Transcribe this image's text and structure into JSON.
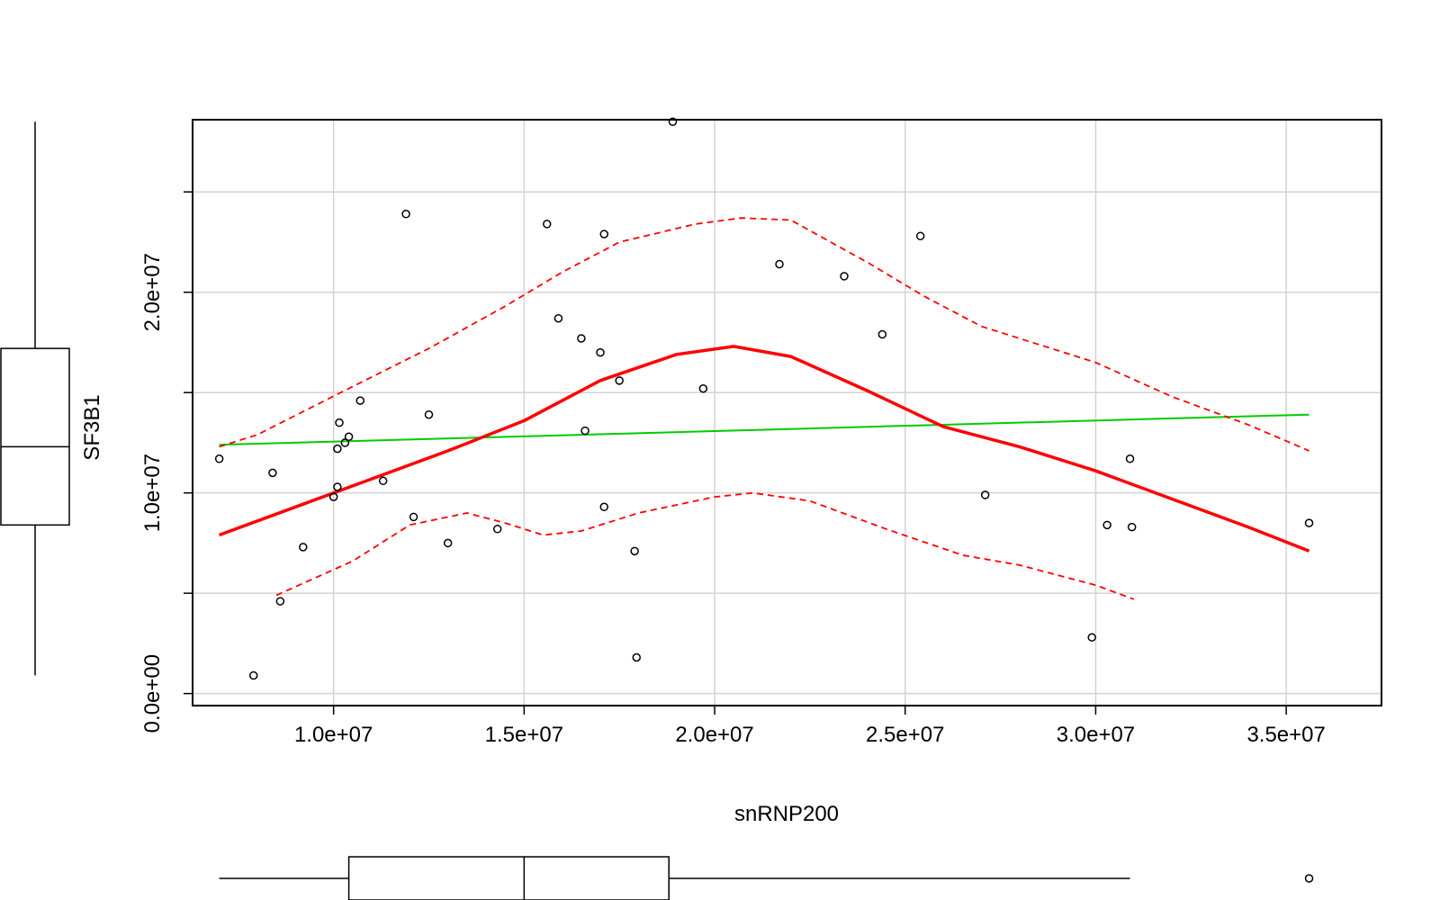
{
  "chart_data": {
    "type": "scatter",
    "title": "",
    "xlabel": "snRNP200",
    "ylabel": "SF3B1",
    "xlim": [
      6300000,
      37500000
    ],
    "ylim": [
      -600000,
      28600000
    ],
    "x_ticks": [
      10000000,
      15000000,
      20000000,
      25000000,
      30000000,
      35000000
    ],
    "x_tick_labels": [
      "1.0e+07",
      "1.5e+07",
      "2.0e+07",
      "2.5e+07",
      "3.0e+07",
      "3.5e+07"
    ],
    "y_gridlines": [
      0,
      5000000,
      10000000,
      15000000,
      20000000,
      25000000
    ],
    "y_ticks": [
      0,
      10000000,
      20000000
    ],
    "y_tick_labels": [
      "0.0e+00",
      "1.0e+07",
      "2.0e+07"
    ],
    "grid": true,
    "points": [
      {
        "x": 7000000,
        "y": 11700000
      },
      {
        "x": 7900000,
        "y": 900000
      },
      {
        "x": 8400000,
        "y": 11000000
      },
      {
        "x": 8600000,
        "y": 4600000
      },
      {
        "x": 9200000,
        "y": 7300000
      },
      {
        "x": 10000000,
        "y": 9800000
      },
      {
        "x": 10100000,
        "y": 12200000
      },
      {
        "x": 10100000,
        "y": 10300000
      },
      {
        "x": 10150000,
        "y": 13500000
      },
      {
        "x": 10300000,
        "y": 12500000
      },
      {
        "x": 10400000,
        "y": 12800000
      },
      {
        "x": 10700000,
        "y": 14600000
      },
      {
        "x": 11300000,
        "y": 10600000
      },
      {
        "x": 11900000,
        "y": 23900000
      },
      {
        "x": 12100000,
        "y": 8800000
      },
      {
        "x": 12500000,
        "y": 13900000
      },
      {
        "x": 13000000,
        "y": 7500000
      },
      {
        "x": 14300000,
        "y": 8200000
      },
      {
        "x": 15600000,
        "y": 23400000
      },
      {
        "x": 15900000,
        "y": 18700000
      },
      {
        "x": 16500000,
        "y": 17700000
      },
      {
        "x": 16600000,
        "y": 13100000
      },
      {
        "x": 17000000,
        "y": 17000000
      },
      {
        "x": 17100000,
        "y": 22900000
      },
      {
        "x": 17100000,
        "y": 9300000
      },
      {
        "x": 17500000,
        "y": 15600000
      },
      {
        "x": 17900000,
        "y": 7100000
      },
      {
        "x": 17950000,
        "y": 1800000
      },
      {
        "x": 18900000,
        "y": 28500000
      },
      {
        "x": 19700000,
        "y": 15200000
      },
      {
        "x": 21700000,
        "y": 21400000
      },
      {
        "x": 23400000,
        "y": 20800000
      },
      {
        "x": 24400000,
        "y": 17900000
      },
      {
        "x": 25400000,
        "y": 22800000
      },
      {
        "x": 27100000,
        "y": 9900000
      },
      {
        "x": 29900000,
        "y": 2800000
      },
      {
        "x": 30300000,
        "y": 8400000
      },
      {
        "x": 30900000,
        "y": 11700000
      },
      {
        "x": 30950000,
        "y": 8300000
      },
      {
        "x": 35600000,
        "y": 8500000
      }
    ],
    "series": [
      {
        "type": "linear-fit",
        "color": "#00cc00",
        "x": [
          7000000,
          35600000
        ],
        "y": [
          12400000,
          13900000
        ]
      },
      {
        "type": "smooth-fit",
        "color": "#ff0000",
        "x": [
          7000000,
          9000000,
          11000000,
          13000000,
          15000000,
          17000000,
          19000000,
          20500000,
          22000000,
          24000000,
          26000000,
          28000000,
          30000000,
          32000000,
          34000000,
          35600000
        ],
        "y": [
          7900000,
          9300000,
          10700000,
          12100000,
          13600000,
          15600000,
          16900000,
          17300000,
          16800000,
          15100000,
          13300000,
          12300000,
          11100000,
          9700000,
          8300000,
          7100000
        ]
      },
      {
        "type": "smooth-band-upper",
        "color": "#ff0000",
        "line_style": "dashed",
        "x": [
          7000000,
          8000000,
          10500000,
          12500000,
          14500000,
          16000000,
          17500000,
          19500000,
          20700000,
          22000000,
          24000000,
          25500000,
          27000000,
          30000000,
          32000000,
          34000000,
          35600000
        ],
        "y": [
          12300000,
          12900000,
          15300000,
          17200000,
          19300000,
          21000000,
          22500000,
          23400000,
          23700000,
          23600000,
          21500000,
          19800000,
          18300000,
          16500000,
          14800000,
          13400000,
          12100000
        ]
      },
      {
        "type": "smooth-band-lower",
        "color": "#ff0000",
        "line_style": "dashed",
        "x": [
          8500000,
          10500000,
          12000000,
          13500000,
          14500000,
          15500000,
          16500000,
          18000000,
          20000000,
          21000000,
          22500000,
          24500000,
          26500000,
          28000000,
          30000000,
          31000000
        ],
        "y": [
          4900000,
          6600000,
          8400000,
          9000000,
          8500000,
          7900000,
          8100000,
          9000000,
          9800000,
          10000000,
          9600000,
          8200000,
          6900000,
          6400000,
          5400000,
          4700000
        ]
      }
    ],
    "boxplots": {
      "x": {
        "lower_whisker": 7000000,
        "q1": 10400000,
        "median": 15000000,
        "q3": 18800000,
        "upper_whisker": 30900000,
        "outliers": [
          35600000
        ]
      },
      "y": {
        "lower_whisker": 900000,
        "q1": 8400000,
        "median": 12300000,
        "q3": 17200000,
        "upper_whisker": 28500000,
        "outliers": []
      }
    }
  }
}
